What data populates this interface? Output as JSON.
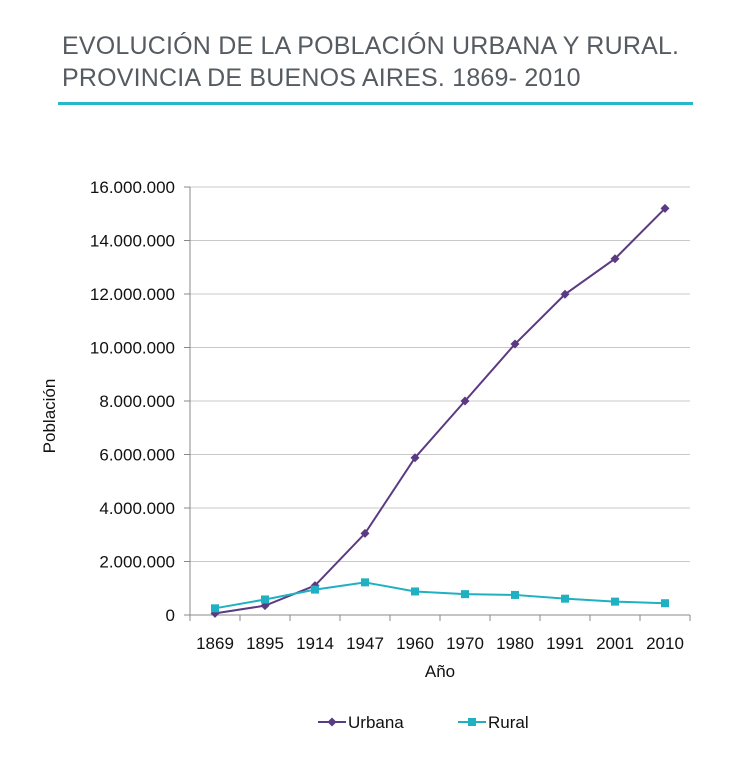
{
  "title_lines": [
    "EVOLUCIÓN DE LA POBLACIÓN URBANA Y RURAL.",
    "PROVINCIA DE BUENOS AIRES. 1869- 2010"
  ],
  "chart_data": {
    "type": "line",
    "title": "EVOLUCIÓN DE LA POBLACIÓN URBANA Y RURAL. PROVINCIA DE BUENOS AIRES. 1869- 2010",
    "xlabel": "Año",
    "ylabel": "Población",
    "ylim": [
      0,
      16000000
    ],
    "y_ticks": [
      0,
      2000000,
      4000000,
      6000000,
      8000000,
      10000000,
      12000000,
      14000000,
      16000000
    ],
    "y_tick_labels": [
      "0",
      "2.000.000",
      "4.000.000",
      "6.000.000",
      "8.000.000",
      "10.000.000",
      "12.000.000",
      "14.000.000",
      "16.000.000"
    ],
    "categories": [
      "1869",
      "1895",
      "1914",
      "1947",
      "1960",
      "1970",
      "1980",
      "1991",
      "2001",
      "2010"
    ],
    "series": [
      {
        "name": "Urbana",
        "color": "#5b3a82",
        "marker": "diamond",
        "values": [
          60000,
          350000,
          1100000,
          3050000,
          5880000,
          8000000,
          10130000,
          11990000,
          13320000,
          15200000
        ]
      },
      {
        "name": "Rural",
        "color": "#1fb1c1",
        "marker": "square",
        "values": [
          250000,
          580000,
          950000,
          1220000,
          880000,
          780000,
          750000,
          610000,
          500000,
          440000
        ]
      }
    ],
    "grid": true,
    "legend_position": "bottom"
  }
}
